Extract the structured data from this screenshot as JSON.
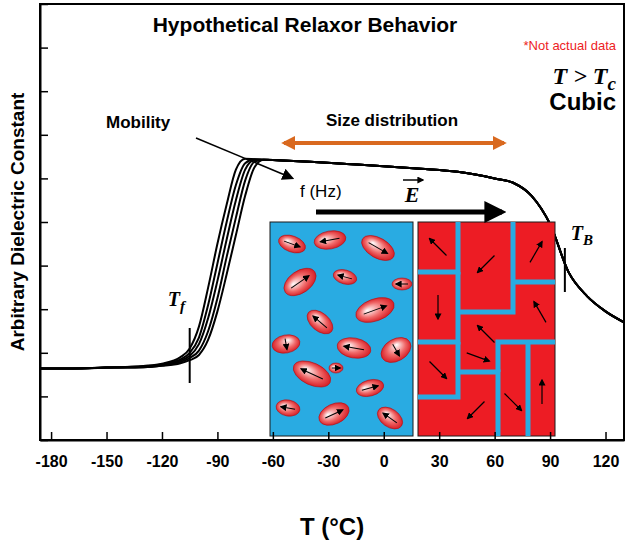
{
  "chart_data": {
    "type": "line",
    "title": "Hypothetical Relaxor Behavior",
    "x_label": "T (°C)",
    "y_label": "Arbitrary Dielectric Constant",
    "x": [
      -186,
      -170,
      -150,
      -130,
      -120,
      -110,
      -105,
      -100,
      -95,
      -90,
      -85,
      -80,
      -75,
      -70,
      -65,
      -60,
      -40,
      -20,
      0,
      20,
      40,
      60,
      70,
      80,
      90,
      100,
      110,
      120,
      130
    ],
    "series": [
      {
        "color": "#000000",
        "values": [
          1.64,
          1.64,
          1.66,
          1.7,
          1.75,
          1.9,
          2.1,
          2.6,
          3.5,
          4.5,
          5.4,
          6.2,
          6.45,
          6.44,
          6.43,
          6.42,
          6.38,
          6.33,
          6.28,
          6.22,
          6.15,
          6.0,
          5.9,
          5.6,
          4.95,
          3.85,
          3.3,
          2.95,
          2.7
        ]
      },
      {
        "color": "#000000",
        "values": [
          1.64,
          1.64,
          1.66,
          1.69,
          1.74,
          1.85,
          2.0,
          2.35,
          3.1,
          4.05,
          5.0,
          5.85,
          6.35,
          6.44,
          6.43,
          6.42,
          6.38,
          6.33,
          6.28,
          6.22,
          6.15,
          6.0,
          5.9,
          5.6,
          4.95,
          3.85,
          3.3,
          2.95,
          2.7
        ]
      },
      {
        "color": "#000000",
        "values": [
          1.64,
          1.64,
          1.66,
          1.68,
          1.72,
          1.82,
          1.93,
          2.2,
          2.8,
          3.65,
          4.6,
          5.5,
          6.2,
          6.42,
          6.43,
          6.42,
          6.38,
          6.33,
          6.28,
          6.22,
          6.15,
          6.0,
          5.9,
          5.6,
          4.95,
          3.85,
          3.3,
          2.95,
          2.7
        ]
      },
      {
        "color": "#000000",
        "values": [
          1.64,
          1.64,
          1.66,
          1.67,
          1.71,
          1.79,
          1.88,
          2.05,
          2.5,
          3.25,
          4.2,
          5.1,
          5.95,
          6.38,
          6.43,
          6.42,
          6.38,
          6.33,
          6.28,
          6.22,
          6.15,
          6.0,
          5.9,
          5.6,
          4.95,
          3.85,
          3.3,
          2.95,
          2.7
        ]
      },
      {
        "color": "#000000",
        "values": [
          1.64,
          1.64,
          1.66,
          1.67,
          1.7,
          1.76,
          1.83,
          1.95,
          2.3,
          2.95,
          3.8,
          4.7,
          5.6,
          6.25,
          6.43,
          6.42,
          6.38,
          6.33,
          6.28,
          6.22,
          6.15,
          6.0,
          5.9,
          5.6,
          4.95,
          3.85,
          3.3,
          2.95,
          2.7
        ]
      }
    ],
    "xlim": [
      -186,
      130
    ],
    "xticks": [
      -180,
      -150,
      -120,
      -90,
      -60,
      -30,
      0,
      30,
      60,
      90,
      120
    ],
    "ylim": [
      0,
      10
    ],
    "yticks": [
      0,
      1,
      2,
      3,
      4,
      5,
      6,
      7,
      8,
      9,
      10
    ],
    "tick_labels": "x",
    "grid": false,
    "annotations": [
      {
        "text": "*Not actual data"
      },
      {
        "text": "T > T",
        "sub": "c"
      },
      {
        "text": "Cubic"
      },
      {
        "text": "Mobility"
      },
      {
        "text": "f (Hz)"
      },
      {
        "text": "Size distribution"
      },
      {
        "text": "E"
      }
    ],
    "markers": [
      {
        "text": "T",
        "sub": "f",
        "x": -105
      },
      {
        "text": "T",
        "sub": "B",
        "x": 98
      }
    ]
  }
}
